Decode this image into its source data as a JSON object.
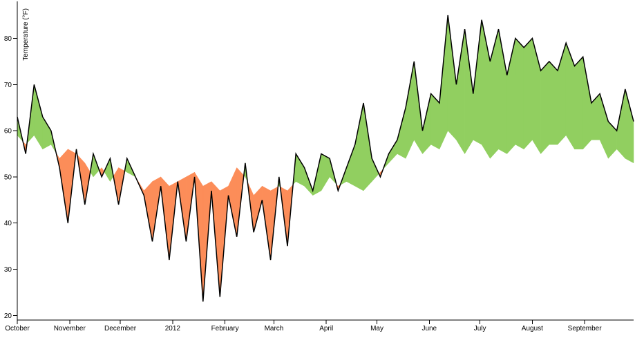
{
  "chart_data": {
    "type": "area",
    "title": "",
    "xlabel": "",
    "ylabel": "Temperature (°F)",
    "ylim": [
      19,
      88
    ],
    "xlim": [
      "2011-10-01",
      "2012-09-30"
    ],
    "y_ticks": [
      20,
      30,
      40,
      50,
      60,
      70,
      80
    ],
    "x_ticks": [
      {
        "date": "2011-10-01",
        "label": "October"
      },
      {
        "date": "2011-11-01",
        "label": "November"
      },
      {
        "date": "2011-12-01",
        "label": "December"
      },
      {
        "date": "2012-01-01",
        "label": "2012"
      },
      {
        "date": "2012-02-01",
        "label": "February"
      },
      {
        "date": "2012-03-01",
        "label": "March"
      },
      {
        "date": "2012-04-01",
        "label": "April"
      },
      {
        "date": "2012-05-01",
        "label": "May"
      },
      {
        "date": "2012-06-01",
        "label": "June"
      },
      {
        "date": "2012-07-01",
        "label": "July"
      },
      {
        "date": "2012-08-01",
        "label": "August"
      },
      {
        "date": "2012-09-01",
        "label": "September"
      }
    ],
    "grid": false,
    "colors": {
      "above": "#91cf60",
      "below": "#fc8d59",
      "line": "#000000"
    },
    "series": [
      {
        "x": [
          "2011-10-01",
          "2011-10-06",
          "2011-10-11",
          "2011-10-16",
          "2011-10-21",
          "2011-10-26",
          "2011-10-31",
          "2011-11-05",
          "2011-11-10",
          "2011-11-15",
          "2011-11-20",
          "2011-11-25",
          "2011-11-30",
          "2011-12-05",
          "2011-12-10",
          "2011-12-15",
          "2011-12-20",
          "2011-12-25",
          "2011-12-30",
          "2012-01-04",
          "2012-01-09",
          "2012-01-14",
          "2012-01-19",
          "2012-01-24",
          "2012-01-29",
          "2012-02-03",
          "2012-02-08",
          "2012-02-13",
          "2012-02-18",
          "2012-02-23",
          "2012-02-28",
          "2012-03-04",
          "2012-03-09",
          "2012-03-14",
          "2012-03-19",
          "2012-03-24",
          "2012-03-29",
          "2012-04-03",
          "2012-04-08",
          "2012-04-13",
          "2012-04-18",
          "2012-04-23",
          "2012-04-28",
          "2012-05-03",
          "2012-05-08",
          "2012-05-13",
          "2012-05-18",
          "2012-05-23",
          "2012-05-28",
          "2012-06-02",
          "2012-06-07",
          "2012-06-12",
          "2012-06-17",
          "2012-06-22",
          "2012-06-27",
          "2012-07-02",
          "2012-07-07",
          "2012-07-12",
          "2012-07-17",
          "2012-07-22",
          "2012-07-27",
          "2012-08-01",
          "2012-08-06",
          "2012-08-11",
          "2012-08-16",
          "2012-08-21",
          "2012-08-26",
          "2012-08-31",
          "2012-09-05",
          "2012-09-10",
          "2012-09-15",
          "2012-09-20",
          "2012-09-25",
          "2012-09-30"
        ],
        "y": [
          63,
          55,
          70,
          63,
          60,
          52,
          40,
          56,
          44,
          55,
          50,
          54,
          44,
          54,
          50,
          46,
          36,
          48,
          32,
          49,
          36,
          50,
          23,
          47,
          24,
          46,
          37,
          53,
          38,
          45,
          32,
          50,
          35,
          55,
          52,
          47,
          55,
          54,
          47,
          52,
          57,
          66,
          54,
          50,
          55,
          58,
          65,
          75,
          60,
          68,
          66,
          85,
          70,
          82,
          68,
          84,
          75,
          82,
          72,
          80,
          78,
          80,
          73,
          75,
          73,
          79,
          74,
          76,
          66,
          68,
          62,
          60,
          69,
          62
        ],
        "name": "",
        "comparison": [
          59,
          57,
          59,
          56,
          57,
          54,
          56,
          55,
          53,
          50,
          52,
          49,
          52,
          51,
          50,
          47,
          49,
          50,
          48,
          49,
          50,
          51,
          48,
          49,
          47,
          48,
          52,
          50,
          46,
          48,
          47,
          48,
          47,
          49,
          48,
          46,
          47,
          50,
          48,
          49,
          48,
          47,
          49,
          51,
          53,
          55,
          54,
          58,
          55,
          57,
          56,
          60,
          58,
          55,
          58,
          57,
          54,
          56,
          55,
          57,
          56,
          58,
          55,
          57,
          57,
          59,
          56,
          56,
          58,
          58,
          54,
          56,
          54,
          53
        ]
      }
    ]
  }
}
